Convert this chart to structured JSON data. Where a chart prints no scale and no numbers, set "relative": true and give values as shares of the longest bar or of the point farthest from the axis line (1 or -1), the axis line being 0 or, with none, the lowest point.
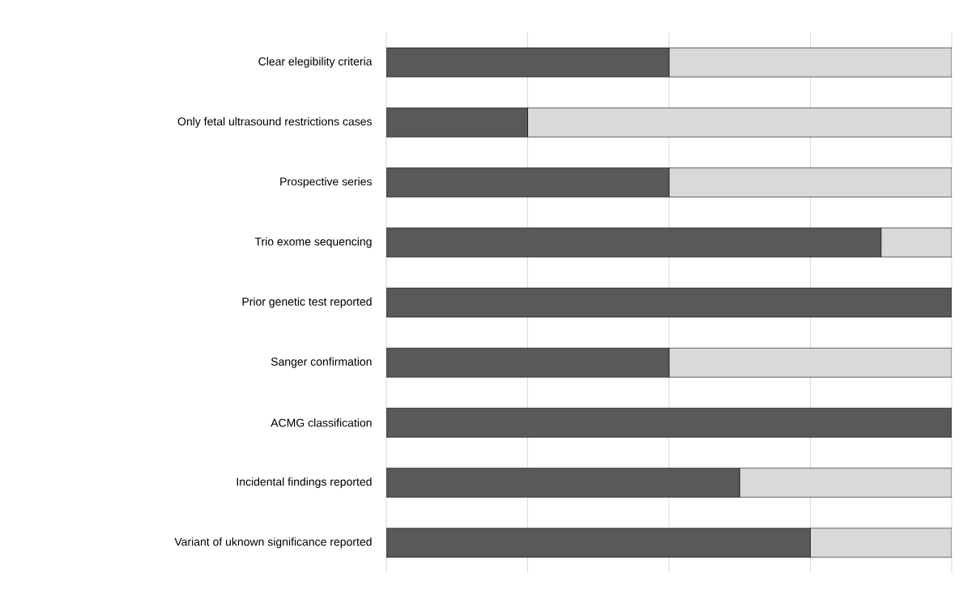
{
  "chart_data": {
    "type": "bar",
    "orientation": "horizontal",
    "stacked": true,
    "relative": true,
    "grid": "x",
    "categories": [
      "Clear elegibility criteria",
      "Only fetal ultrasound restrictions cases",
      "Prospective series",
      "Trio exome sequencing",
      "Prior genetic test reported",
      "Sanger confirmation",
      "ACMG classification",
      "Incidental findings reported",
      "Variant of uknown significance reported"
    ],
    "series": [
      {
        "color": "#595959",
        "values": [
          0.5,
          0.25,
          0.5,
          0.875,
          1.0,
          0.5,
          1.0,
          0.625,
          0.75
        ]
      },
      {
        "color": "#d9d9d9",
        "values": [
          0.5,
          0.75,
          0.5,
          0.125,
          0.0,
          0.5,
          0.0,
          0.375,
          0.25
        ]
      }
    ]
  }
}
